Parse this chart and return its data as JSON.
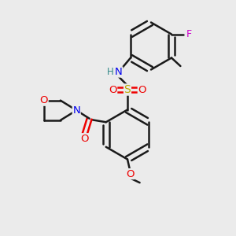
{
  "background_color": "#ebebeb",
  "bond_color": "#1a1a1a",
  "bond_width": 1.8,
  "atom_colors": {
    "C": "#1a1a1a",
    "N": "#0000ee",
    "O": "#ee0000",
    "S": "#bbaa00",
    "F": "#cc00cc",
    "H": "#338888"
  },
  "figsize": [
    3.0,
    3.0
  ],
  "dpi": 100
}
